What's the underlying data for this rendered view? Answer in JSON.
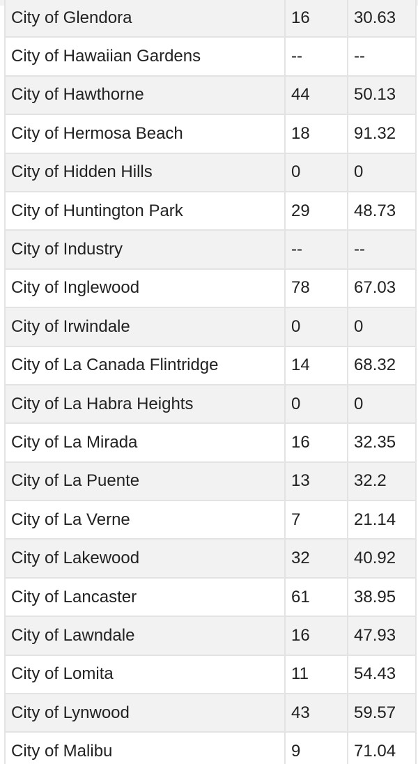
{
  "table": {
    "rows": [
      {
        "city": "City of Glendora",
        "count": "16",
        "rate": "30.63"
      },
      {
        "city": "City of Hawaiian Gardens",
        "count": "--",
        "rate": "--"
      },
      {
        "city": "City of Hawthorne",
        "count": "44",
        "rate": "50.13"
      },
      {
        "city": "City of Hermosa Beach",
        "count": "18",
        "rate": "91.32"
      },
      {
        "city": "City of Hidden Hills",
        "count": "0",
        "rate": "0"
      },
      {
        "city": "City of Huntington Park",
        "count": "29",
        "rate": "48.73"
      },
      {
        "city": "City of Industry",
        "count": "--",
        "rate": "--"
      },
      {
        "city": "City of Inglewood",
        "count": "78",
        "rate": "67.03"
      },
      {
        "city": "City of Irwindale",
        "count": "0",
        "rate": "0"
      },
      {
        "city": "City of La Canada Flintridge",
        "count": "14",
        "rate": "68.32"
      },
      {
        "city": "City of La Habra Heights",
        "count": "0",
        "rate": "0"
      },
      {
        "city": "City of La Mirada",
        "count": "16",
        "rate": "32.35"
      },
      {
        "city": "City of La Puente",
        "count": "13",
        "rate": "32.2"
      },
      {
        "city": "City of La Verne",
        "count": "7",
        "rate": "21.14"
      },
      {
        "city": "City of Lakewood",
        "count": "32",
        "rate": "40.92"
      },
      {
        "city": "City of Lancaster",
        "count": "61",
        "rate": "38.95"
      },
      {
        "city": "City of Lawndale",
        "count": "16",
        "rate": "47.93"
      },
      {
        "city": "City of Lomita",
        "count": "11",
        "rate": "54.43"
      },
      {
        "city": "City of Lynwood",
        "count": "43",
        "rate": "59.57"
      },
      {
        "city": "City of Malibu",
        "count": "9",
        "rate": "71.04"
      }
    ]
  }
}
